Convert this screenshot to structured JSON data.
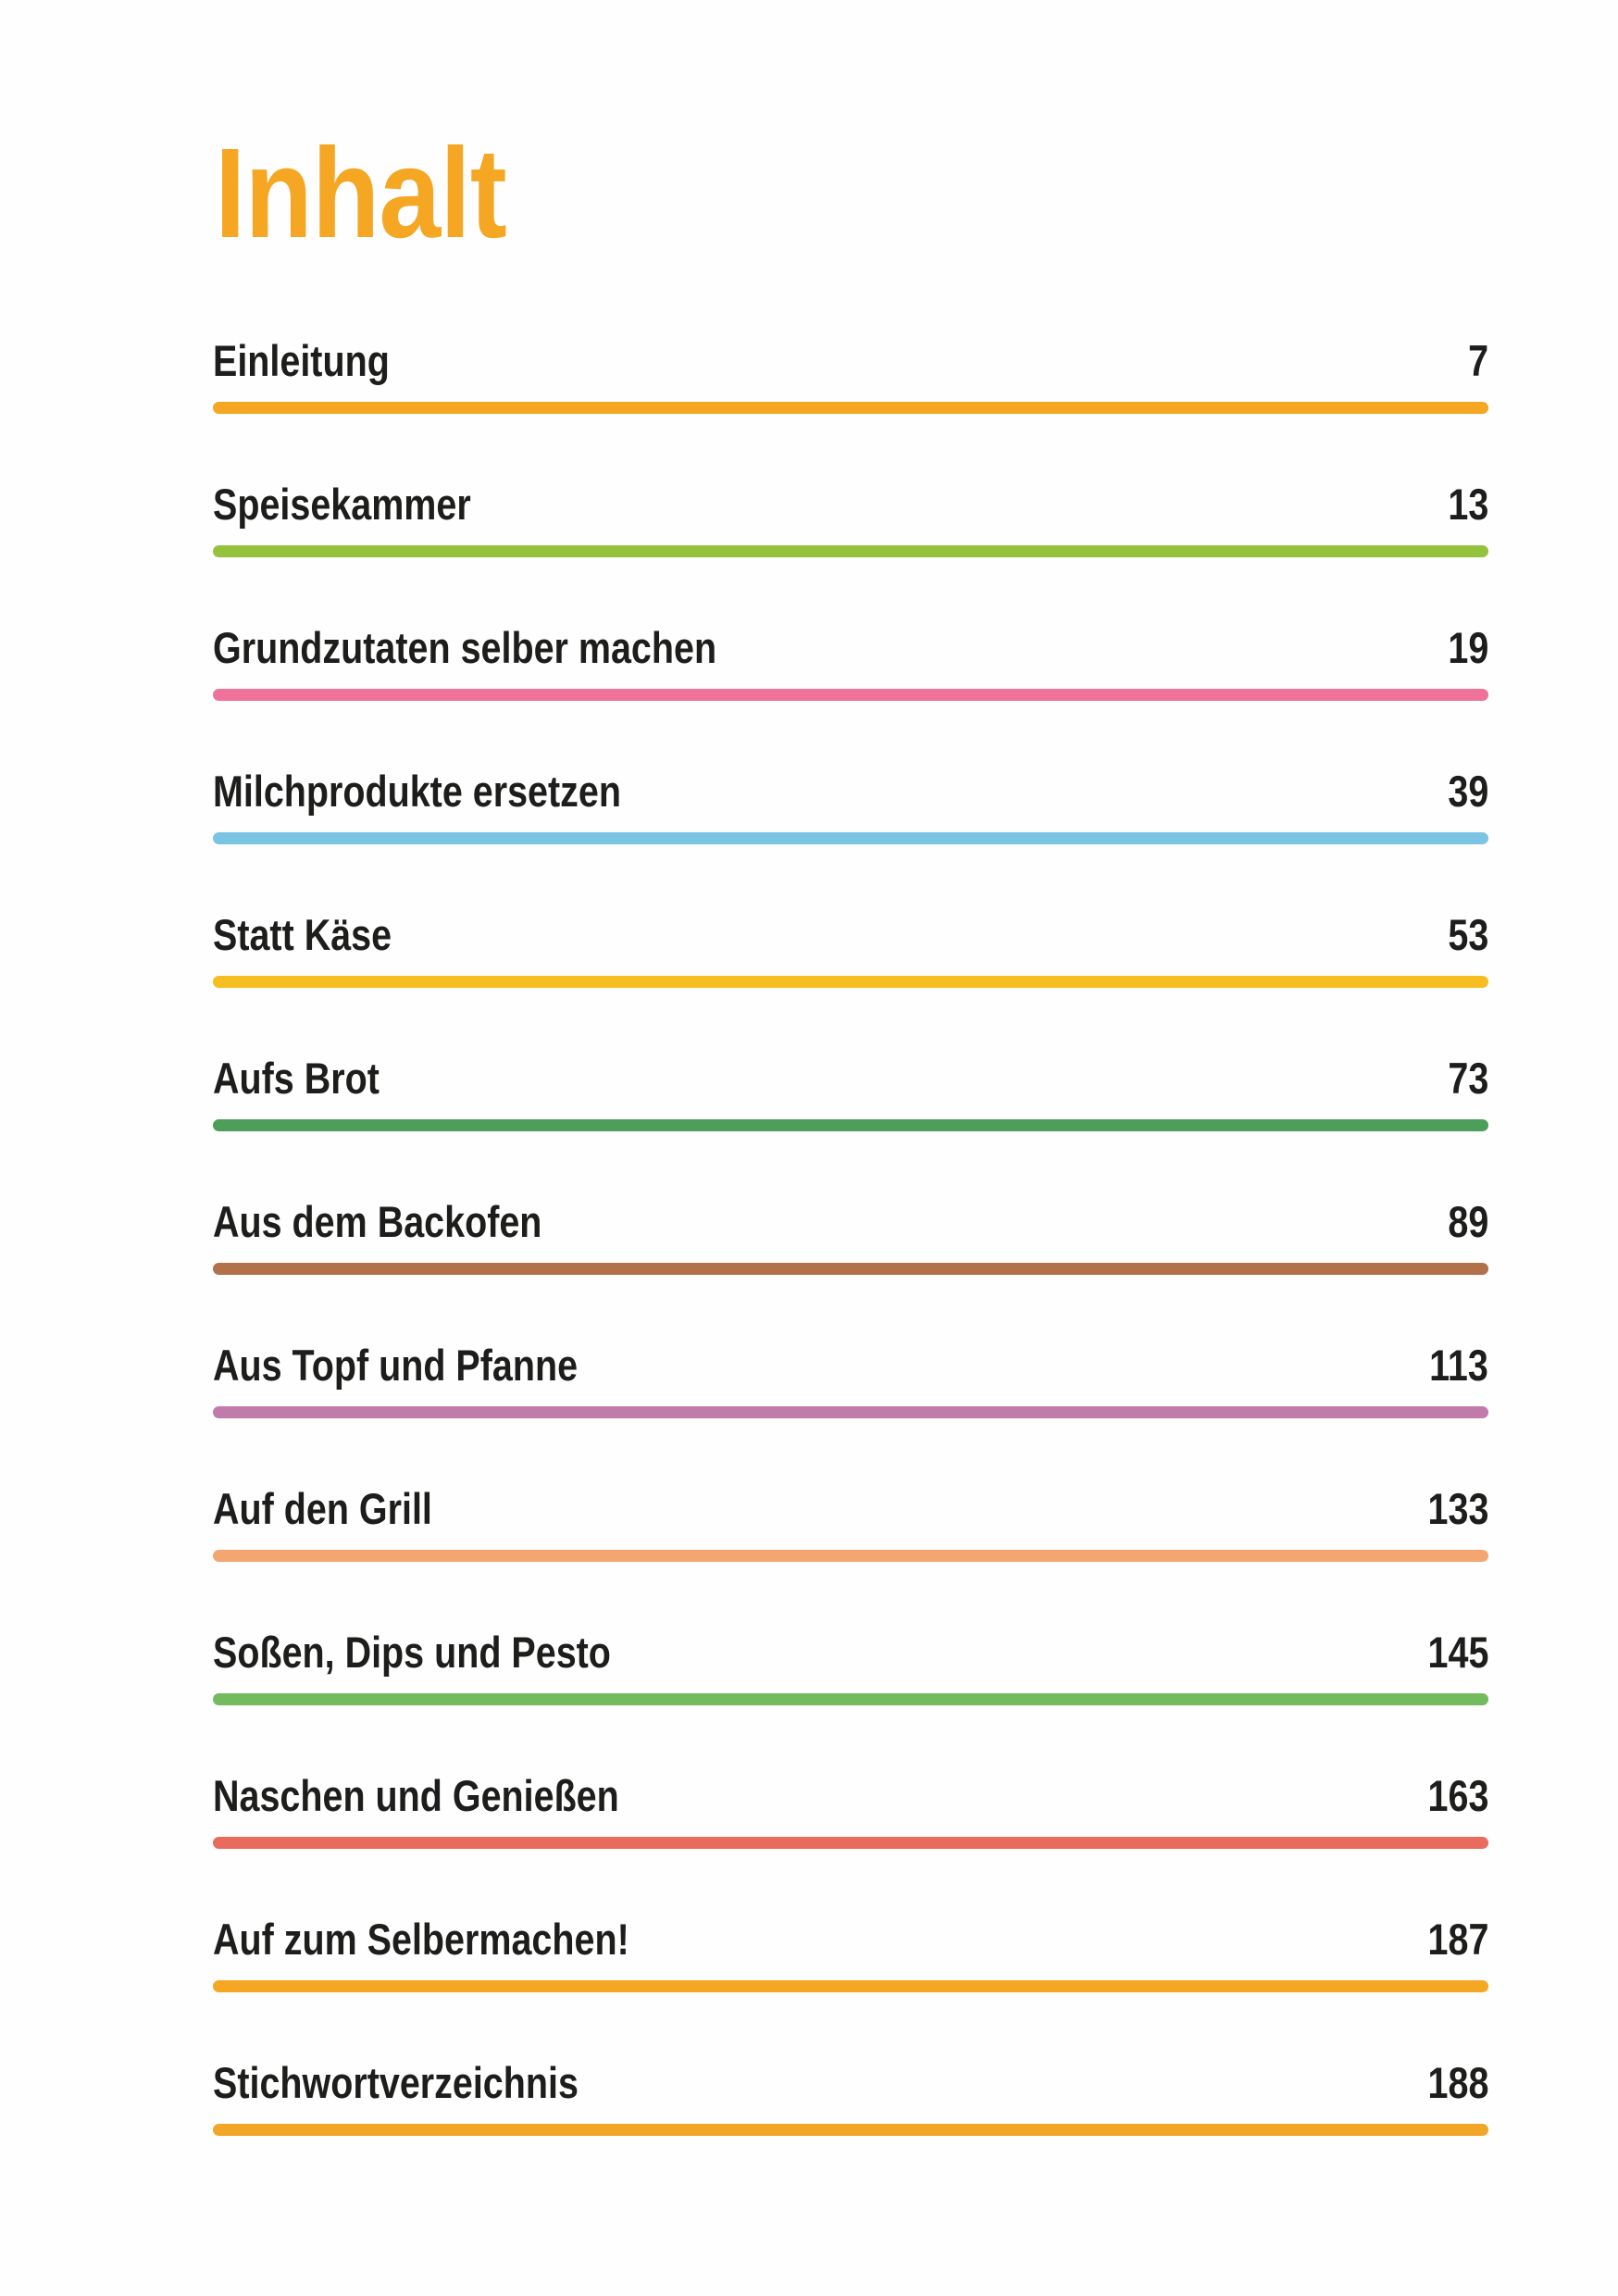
{
  "title": "Inhalt",
  "title_color": "#F5A623",
  "text_color": "#1D1D1B",
  "entries": [
    {
      "label": "Einleitung",
      "page": "7",
      "color": "#F5A623"
    },
    {
      "label": "Speisekammer",
      "page": "13",
      "color": "#95C23D"
    },
    {
      "label": "Grundzutaten selber machen",
      "page": "19",
      "color": "#EE7299"
    },
    {
      "label": "Milchprodukte ersetzen",
      "page": "39",
      "color": "#7BC4E4"
    },
    {
      "label": "Statt Käse",
      "page": "53",
      "color": "#F6BE20"
    },
    {
      "label": "Aufs Brot",
      "page": "73",
      "color": "#4C9E58"
    },
    {
      "label": "Aus dem Backofen",
      "page": "89",
      "color": "#B27149"
    },
    {
      "label": "Aus Topf und Pfanne",
      "page": "113",
      "color": "#C07BAB"
    },
    {
      "label": "Auf den Grill",
      "page": "133",
      "color": "#F4A671"
    },
    {
      "label": "Soßen, Dips und Pesto",
      "page": "145",
      "color": "#74BA5F"
    },
    {
      "label": "Naschen und Genießen",
      "page": "163",
      "color": "#E96B5D"
    },
    {
      "label": "Auf zum Selbermachen!",
      "page": "187",
      "color": "#F5A623"
    },
    {
      "label": "Stichwortverzeichnis",
      "page": "188",
      "color": "#F2A627"
    }
  ]
}
